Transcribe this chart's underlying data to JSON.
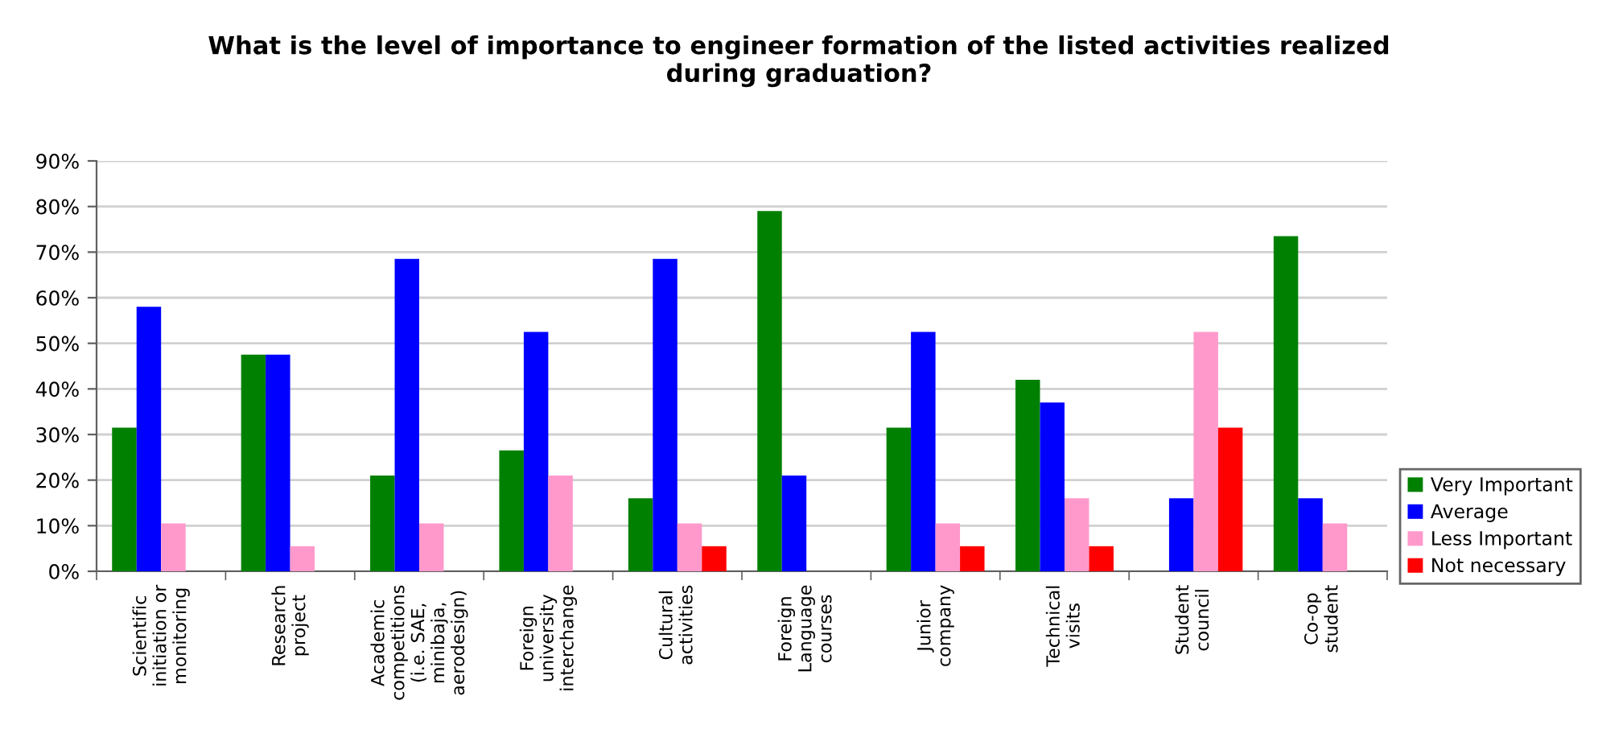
{
  "chart_data": {
    "type": "bar",
    "title": "What is the level of importance to engineer formation of the listed activities realized\nduring graduation?",
    "categories": [
      "Scientific\ninitiation or\nmonitoring",
      "Research\nproject",
      "Academic\ncompetitions\n(i.e. SAE,\nminibaja,\naerodesign)",
      "Foreign\nuniversity\ninterchange",
      "Cultural\nactivities",
      "Foreign\nLanguage\ncourses",
      "Junior\ncompany",
      "Technical\nvisits",
      "Student\ncouncil",
      "Co-op\nstudent"
    ],
    "series": [
      {
        "name": "Very Important",
        "color": "#008000",
        "values": [
          31.5,
          47.5,
          21,
          26.5,
          16,
          79,
          31.5,
          42,
          0,
          73.5
        ]
      },
      {
        "name": "Average",
        "color": "#0000ff",
        "values": [
          58,
          47.5,
          68.5,
          52.5,
          68.5,
          21,
          52.5,
          37,
          16,
          16
        ]
      },
      {
        "name": "Less Important",
        "color": "#ff99cc",
        "values": [
          10.5,
          5.5,
          10.5,
          21,
          10.5,
          0,
          10.5,
          16,
          52.5,
          10.5
        ]
      },
      {
        "name": "Not necessary",
        "color": "#ff0000",
        "values": [
          0,
          0,
          0,
          0,
          5.5,
          0,
          5.5,
          5.5,
          31.5,
          0
        ]
      }
    ],
    "ylim": [
      0,
      90
    ],
    "yticks": [
      {
        "value": 0,
        "label": "0%"
      },
      {
        "value": 10,
        "label": "10%"
      },
      {
        "value": 20,
        "label": "20%"
      },
      {
        "value": 30,
        "label": "30%"
      },
      {
        "value": 40,
        "label": "40%"
      },
      {
        "value": 50,
        "label": "50%"
      },
      {
        "value": 60,
        "label": "60%"
      },
      {
        "value": 70,
        "label": "70%"
      },
      {
        "value": 80,
        "label": "80%"
      },
      {
        "value": 90,
        "label": "90%"
      }
    ],
    "grid": "y",
    "legend": "right"
  }
}
